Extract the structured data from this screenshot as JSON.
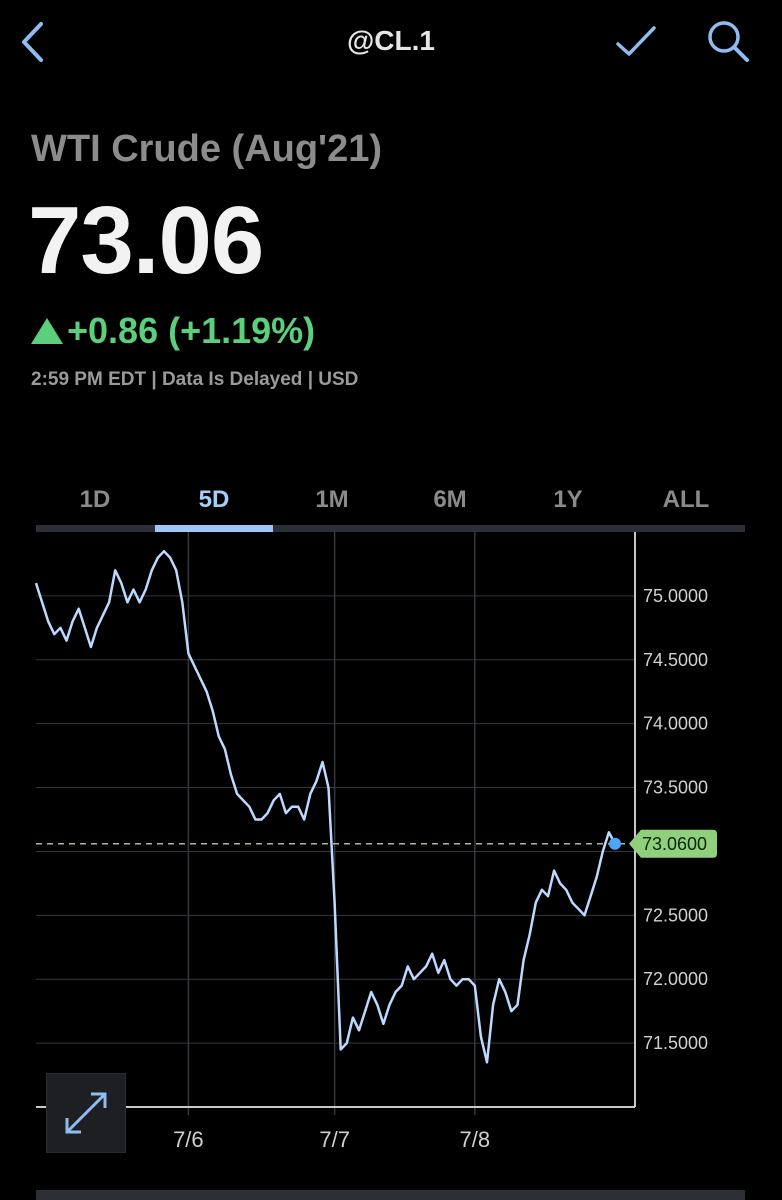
{
  "header": {
    "symbol": "@CL.1",
    "back_icon": "chevron-left-icon",
    "check_icon": "checkmark-icon",
    "search_icon": "search-icon"
  },
  "quote": {
    "name": "WTI Crude (Aug'21)",
    "price": "73.06",
    "change": "+0.86 (+1.19%)",
    "direction_icon": "triangle-up-icon",
    "meta": "2:59 PM EDT | Data Is Delayed | USD",
    "change_color": "#5bcf7b"
  },
  "tabs": [
    {
      "label": "1D"
    },
    {
      "label": "5D"
    },
    {
      "label": "1M"
    },
    {
      "label": "6M"
    },
    {
      "label": "1Y"
    },
    {
      "label": "ALL"
    }
  ],
  "active_tab": "5D",
  "chart_data": {
    "type": "line",
    "y_ticks": [
      "75.0000",
      "74.5000",
      "74.0000",
      "73.5000",
      "72.5000",
      "72.0000",
      "71.5000"
    ],
    "x_ticks": [
      "7/6",
      "7/7",
      "7/8"
    ],
    "ylim": [
      71.0,
      75.5
    ],
    "current_value": 73.06,
    "current_label": "73.0600",
    "line_color": "#bcd9ff",
    "tag_color": "#8fd07c",
    "series": [
      {
        "values": [
          75.1,
          74.95,
          74.8,
          74.7,
          74.75,
          74.65,
          74.8,
          74.9,
          74.75,
          74.6,
          74.75,
          74.85,
          74.95,
          75.2,
          75.1,
          74.95,
          75.05,
          74.95,
          75.05,
          75.2,
          75.3,
          75.35,
          75.3,
          75.2,
          74.95,
          74.55,
          74.45,
          74.35,
          74.25,
          74.1,
          73.9,
          73.8,
          73.6,
          73.45,
          73.4,
          73.35,
          73.25,
          73.25,
          73.3,
          73.4,
          73.45,
          73.3,
          73.35,
          73.35,
          73.25,
          73.45,
          73.55,
          73.7,
          73.5,
          72.6,
          71.45,
          71.5,
          71.7,
          71.6,
          71.75,
          71.9,
          71.8,
          71.65,
          71.8,
          71.9,
          71.95,
          72.1,
          72.0,
          72.05,
          72.1,
          72.2,
          72.05,
          72.15,
          72.0,
          71.95,
          72.0,
          72.0,
          71.95,
          71.55,
          71.35,
          71.8,
          72.0,
          71.9,
          71.75,
          71.8,
          72.15,
          72.35,
          72.6,
          72.7,
          72.65,
          72.85,
          72.75,
          72.7,
          72.6,
          72.55,
          72.5,
          72.65,
          72.8,
          73.0,
          73.15,
          73.06
        ]
      }
    ]
  }
}
